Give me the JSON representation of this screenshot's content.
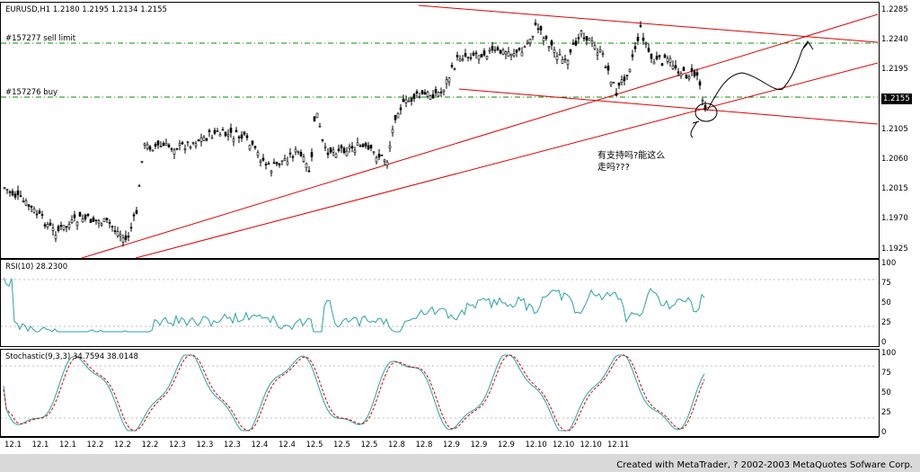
{
  "main_panel": {
    "title": "EURUSD,H1  1.2180 1.2195 1.2134 1.2155",
    "order_sell_label": "#157277 sell limit",
    "order_buy_label": "#157276 buy",
    "current_price": "1.2155",
    "annotation_line1": "有支持吗?能这么",
    "annotation_line2": "走吗???",
    "price_scale": [
      "1.2285",
      "1.2240",
      "1.2195",
      "1.2150",
      "1.2105",
      "1.2060",
      "1.2015",
      "1.1970",
      "1.1925"
    ]
  },
  "rsi_panel": {
    "title": "RSI(10)  28.2300",
    "scale": [
      "100",
      "75",
      "50",
      "25",
      "0"
    ],
    "line_color": "#2aa3a3"
  },
  "stoch_panel": {
    "title": "Stochastic(9,3,3)  34.7594  38.0148",
    "scale": [
      "100",
      "75",
      "50",
      "25",
      "0"
    ],
    "main_color": "#2aa3a3",
    "signal_color": "#d40000"
  },
  "time_axis": [
    "12.1",
    "12.1",
    "12.1",
    "12.2",
    "12.2",
    "12.2",
    "12.3",
    "12.3",
    "12.3",
    "12.4",
    "12.4",
    "12.5",
    "12.5",
    "12.5",
    "12.8",
    "12.8",
    "12.9",
    "12.9",
    "12.9",
    "12.10",
    "12.10",
    "12.10",
    "12.11"
  ],
  "footer": {
    "credit": "Created with MetaTrader, ? 2002-2003 MetaQuotes Sofware Corp."
  },
  "colors": {
    "trendline": "#e00000",
    "order_line": "#009000",
    "candle": "#000000",
    "background": "#ffffff"
  }
}
